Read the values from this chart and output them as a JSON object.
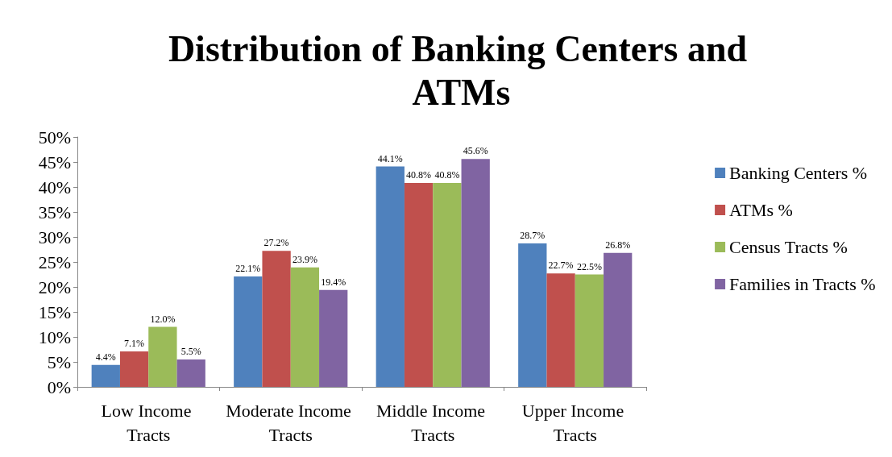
{
  "chart_data": {
    "type": "bar",
    "title": "Distribution of Banking Centers and ATMs",
    "categories": [
      "Low Income Tracts",
      "Moderate Income Tracts",
      "Middle Income Tracts",
      "Upper Income Tracts"
    ],
    "series": [
      {
        "name": "Banking Centers %",
        "color": "#4f81bd",
        "values": [
          4.4,
          22.1,
          44.1,
          28.7
        ],
        "value_labels": [
          "4.4%",
          "22.1%",
          "44.1%",
          "28.7%"
        ]
      },
      {
        "name": "ATMs %",
        "color": "#c0504d",
        "values": [
          7.1,
          27.2,
          40.8,
          22.7
        ],
        "value_labels": [
          "7.1%",
          "27.2%",
          "40.8%",
          "22.7%"
        ]
      },
      {
        "name": "Census Tracts %",
        "color": "#9bbb59",
        "values": [
          12.0,
          23.9,
          40.8,
          22.5
        ],
        "value_labels": [
          "12.0%",
          "23.9%",
          "40.8%",
          "22.5%"
        ]
      },
      {
        "name": "Families in Tracts %",
        "color": "#8064a2",
        "values": [
          5.5,
          19.4,
          45.6,
          26.8
        ],
        "value_labels": [
          "5.5%",
          "19.4%",
          "45.6%",
          "26.8%"
        ]
      }
    ],
    "ylim": [
      0,
      50
    ],
    "yticks": [
      {
        "value": 0,
        "label": "0%"
      },
      {
        "value": 5,
        "label": "5%"
      },
      {
        "value": 10,
        "label": "10%"
      },
      {
        "value": 15,
        "label": "15%"
      },
      {
        "value": 20,
        "label": "20%"
      },
      {
        "value": 25,
        "label": "25%"
      },
      {
        "value": 30,
        "label": "30%"
      },
      {
        "value": 35,
        "label": "35%"
      },
      {
        "value": 40,
        "label": "40%"
      },
      {
        "value": 45,
        "label": "45%"
      },
      {
        "value": 50,
        "label": "50%"
      }
    ],
    "grid": false,
    "legend": "right"
  }
}
